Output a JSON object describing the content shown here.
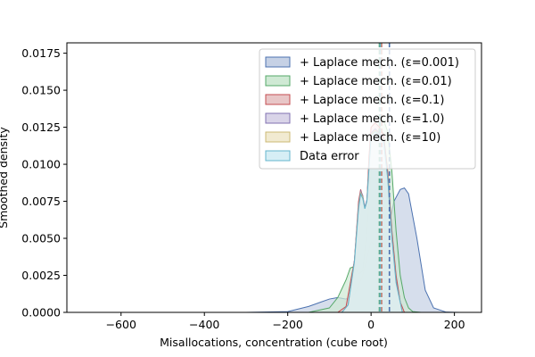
{
  "chart_data": {
    "type": "area",
    "title": "",
    "xlabel": "Misallocations, concentration (cube root)",
    "ylabel": "Smoothed density",
    "xlim": [
      -730,
      265
    ],
    "ylim": [
      0,
      0.0182
    ],
    "grid": false,
    "legend_position": "top-right",
    "x_ticks": [
      -600,
      -400,
      -200,
      0,
      200
    ],
    "x_tick_labels": [
      "−600",
      "−400",
      "−200",
      "0",
      "200"
    ],
    "y_ticks": [
      0,
      0.0025,
      0.005,
      0.0075,
      0.01,
      0.0125,
      0.015,
      0.0175
    ],
    "y_tick_labels": [
      "0.0000",
      "0.0025",
      "0.0050",
      "0.0075",
      "0.0100",
      "0.0125",
      "0.0150",
      "0.0175"
    ],
    "series": [
      {
        "name": "+ Laplace mech. (ε=0.001)",
        "color": "#4c72b0",
        "fill": "#c6d1e5",
        "mean_line_x": 44,
        "x": [
          -680,
          -300,
          -200,
          -150,
          -120,
          -100,
          -80,
          -60,
          -40,
          -20,
          0,
          20,
          40,
          55,
          70,
          80,
          90,
          110,
          130,
          150,
          180,
          215
        ],
        "y": [
          0,
          0,
          5e-05,
          0.0004,
          0.0007,
          0.0009,
          0.001,
          0.0009,
          0.0012,
          0.0025,
          0.0048,
          0.0042,
          0.0055,
          0.0075,
          0.0083,
          0.0084,
          0.008,
          0.005,
          0.0015,
          0.0003,
          2e-05,
          0
        ]
      },
      {
        "name": "+ Laplace mech. (ε=0.01)",
        "color": "#55a868",
        "fill": "#cfe9d4",
        "mean_line_x": 20,
        "x": [
          -150,
          -100,
          -80,
          -60,
          -50,
          -40,
          -30,
          -20,
          -10,
          0,
          10,
          20,
          30,
          40,
          50,
          60,
          70,
          80,
          90,
          100,
          120
        ],
        "y": [
          0,
          0.0003,
          0.001,
          0.0022,
          0.003,
          0.0031,
          0.0026,
          0.0028,
          0.0055,
          0.0095,
          0.0115,
          0.0125,
          0.013,
          0.0122,
          0.0095,
          0.0055,
          0.0025,
          0.001,
          0.0003,
          5e-05,
          0
        ]
      },
      {
        "name": "+ Laplace mech. (ε=0.1)",
        "color": "#c44e52",
        "fill": "#e8c6c7",
        "mean_line_x": 25,
        "x": [
          -80,
          -60,
          -40,
          -30,
          -25,
          -20,
          -15,
          -10,
          -5,
          0,
          10,
          20,
          30,
          40,
          50,
          60,
          70,
          80
        ],
        "y": [
          0,
          0.0004,
          0.0035,
          0.0075,
          0.0083,
          0.0078,
          0.007,
          0.0075,
          0.0105,
          0.0125,
          0.0128,
          0.0125,
          0.012,
          0.0095,
          0.0055,
          0.0025,
          0.0007,
          0
        ]
      },
      {
        "name": "+ Laplace mech. (ε=1.0)",
        "color": "#8172b2",
        "fill": "#d9d4e8",
        "mean_line_x": 22,
        "x": [
          -70,
          -55,
          -40,
          -30,
          -25,
          -20,
          -15,
          -10,
          0,
          10,
          20,
          30,
          40,
          50,
          60,
          75
        ],
        "y": [
          0,
          0.0005,
          0.0035,
          0.0072,
          0.0082,
          0.0079,
          0.0071,
          0.0076,
          0.0121,
          0.0124,
          0.0121,
          0.0118,
          0.0091,
          0.0051,
          0.0021,
          0
        ]
      },
      {
        "name": "+ Laplace mech. (ε=10)",
        "color": "#ccb974",
        "fill": "#f1ead1",
        "mean_line_x": 23,
        "x": [
          -70,
          -55,
          -40,
          -30,
          -25,
          -20,
          -15,
          -10,
          0,
          10,
          20,
          30,
          40,
          50,
          60,
          75
        ],
        "y": [
          0,
          0.0005,
          0.0034,
          0.0071,
          0.0081,
          0.0078,
          0.007,
          0.0075,
          0.012,
          0.0123,
          0.012,
          0.0117,
          0.009,
          0.005,
          0.002,
          0
        ]
      },
      {
        "name": "Data error",
        "color": "#64b5cd",
        "fill": "#d6eef5",
        "mean_line_x": 22,
        "x": [
          -70,
          -55,
          -40,
          -30,
          -25,
          -20,
          -15,
          -10,
          0,
          10,
          20,
          30,
          40,
          50,
          60,
          75
        ],
        "y": [
          0,
          0.0005,
          0.0034,
          0.007,
          0.008,
          0.0077,
          0.007,
          0.0075,
          0.0119,
          0.0122,
          0.012,
          0.0116,
          0.009,
          0.005,
          0.002,
          0
        ]
      }
    ]
  }
}
